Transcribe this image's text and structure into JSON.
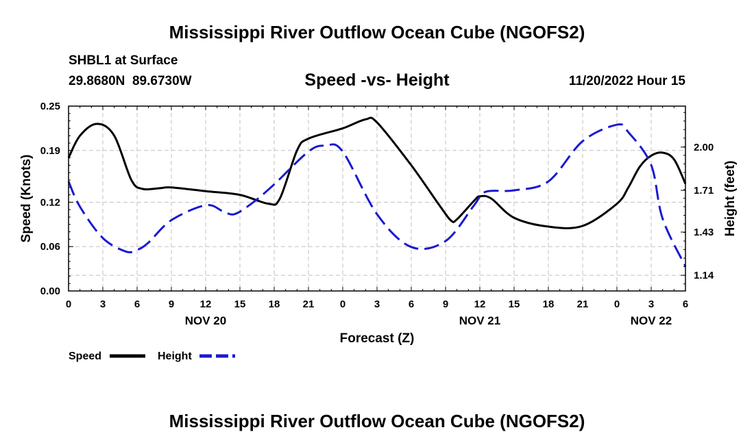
{
  "chart_data": {
    "type": "line",
    "title": "Mississippi River Outflow Ocean Cube (NGOFS2)",
    "footer_title": "Mississippi River Outflow Ocean Cube (NGOFS2)",
    "station": "SHBL1 at Surface",
    "coordinates": "29.8680N  89.6730W",
    "subtitle": "Speed -vs- Height",
    "datetime": "11/20/2022 Hour 15",
    "xlabel": "Forecast (Z)",
    "ylabel_left": "Speed (Knots)",
    "ylabel_right": "Height (feet)",
    "x_range": [
      0,
      54
    ],
    "x_tick_values": [
      0,
      3,
      6,
      9,
      12,
      15,
      18,
      21,
      24,
      27,
      30,
      33,
      36,
      39,
      42,
      45,
      48,
      51,
      54
    ],
    "x_tick_labels": [
      "0",
      "3",
      "6",
      "9",
      "12",
      "15",
      "18",
      "21",
      "0",
      "3",
      "6",
      "9",
      "12",
      "15",
      "18",
      "21",
      "0",
      "3",
      "6"
    ],
    "day_labels": [
      {
        "x": 12,
        "label": "NOV 20"
      },
      {
        "x": 36,
        "label": "NOV 21"
      },
      {
        "x": 51,
        "label": "NOV 22"
      }
    ],
    "ylim_left": [
      0,
      0.25
    ],
    "y_ticks_left": [
      0.0,
      0.06,
      0.12,
      0.19,
      0.25
    ],
    "y_tick_labels_left": [
      "0.00",
      "0.06",
      "0.12",
      "0.19",
      "0.25"
    ],
    "ylim_right": [
      1.035,
      2.275
    ],
    "y_ticks_right": [
      1.14,
      1.43,
      1.71,
      2.0
    ],
    "y_tick_labels_right": [
      "1.14",
      "1.43",
      "1.71",
      "2.00"
    ],
    "grid": true,
    "legend": [
      {
        "name": "Speed",
        "color": "#000000",
        "dashed": false
      },
      {
        "name": "Height",
        "color": "#1a1ad0",
        "dashed": true
      }
    ],
    "series": [
      {
        "name": "Speed",
        "axis": "left",
        "color": "#000000",
        "x": [
          0,
          1,
          2.5,
          4,
          5.5,
          6.5,
          8,
          9,
          12,
          15,
          17.5,
          18.5,
          20,
          21,
          24,
          26,
          27,
          30,
          32.5,
          33.5,
          34,
          35.5,
          36,
          37,
          39,
          42,
          45,
          48,
          49,
          50,
          51,
          52,
          53,
          54
        ],
        "values": [
          0.18,
          0.21,
          0.226,
          0.21,
          0.15,
          0.138,
          0.139,
          0.14,
          0.135,
          0.13,
          0.118,
          0.125,
          0.19,
          0.206,
          0.22,
          0.232,
          0.228,
          0.17,
          0.115,
          0.095,
          0.097,
          0.122,
          0.128,
          0.125,
          0.099,
          0.087,
          0.088,
          0.118,
          0.14,
          0.168,
          0.183,
          0.187,
          0.178,
          0.145
        ]
      },
      {
        "name": "Height",
        "axis": "right",
        "color": "#1a1ad0",
        "x": [
          0,
          1,
          3,
          5,
          6,
          7,
          9,
          12,
          13.5,
          14.5,
          16,
          18,
          21,
          22.5,
          24,
          27,
          30,
          33,
          35.5,
          36.5,
          39,
          42,
          45,
          48,
          49,
          51,
          52,
          54
        ],
        "values": [
          1.77,
          1.6,
          1.39,
          1.3,
          1.31,
          1.36,
          1.51,
          1.61,
          1.57,
          1.55,
          1.62,
          1.75,
          1.97,
          2.01,
          1.97,
          1.55,
          1.33,
          1.37,
          1.61,
          1.7,
          1.71,
          1.77,
          2.04,
          2.15,
          2.1,
          1.88,
          1.52,
          1.2
        ]
      }
    ]
  }
}
